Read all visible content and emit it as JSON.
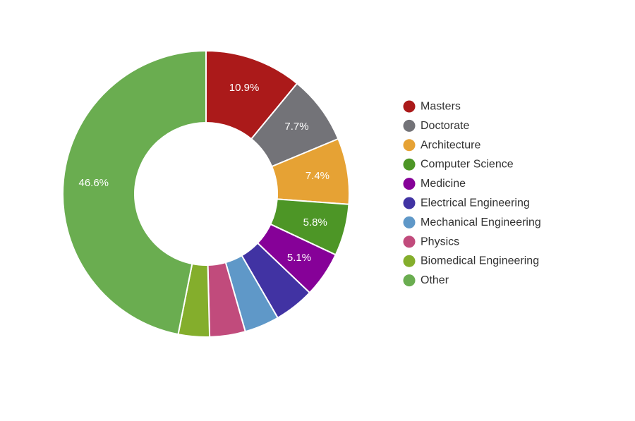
{
  "chart_data": {
    "type": "pie",
    "donut": true,
    "legend_position": "right",
    "start_angle_deg": 0,
    "slices": [
      {
        "label": "Masters",
        "value": 10.9,
        "display": "10.9%",
        "color": "#ab1a1a"
      },
      {
        "label": "Doctorate",
        "value": 7.7,
        "display": "7.7%",
        "color": "#737378"
      },
      {
        "label": "Architecture",
        "value": 7.4,
        "display": "7.4%",
        "color": "#e6a234"
      },
      {
        "label": "Computer Science",
        "value": 5.8,
        "display": "5.8%",
        "color": "#4d9626"
      },
      {
        "label": "Medicine",
        "value": 5.1,
        "display": "5.1%",
        "color": "#860198"
      },
      {
        "label": "Electrical Engineering",
        "value": 4.5,
        "display": "",
        "color": "#4133a3"
      },
      {
        "label": "Mechanical Engineering",
        "value": 3.9,
        "display": "",
        "color": "#5f98c8"
      },
      {
        "label": "Physics",
        "value": 4.0,
        "display": "",
        "color": "#c14b7c"
      },
      {
        "label": "Biomedical Engineering",
        "value": 3.5,
        "display": "",
        "color": "#84ae2c"
      },
      {
        "label": "Other",
        "value": 46.6,
        "display": "46.6%",
        "color": "#6aad50"
      }
    ]
  }
}
